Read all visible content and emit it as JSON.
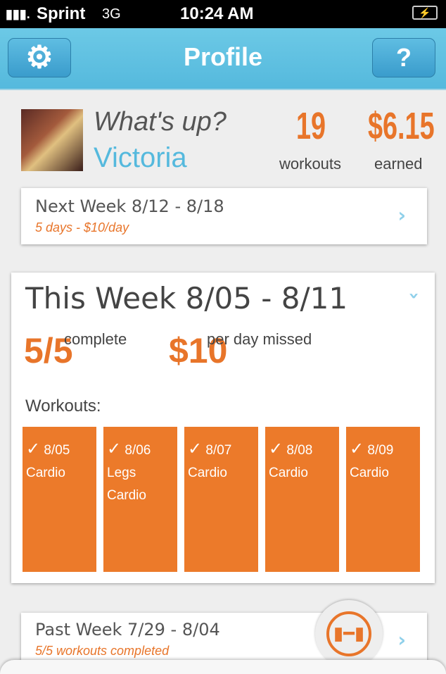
{
  "status": {
    "carrier": "Sprint",
    "network": "3G",
    "time": "10:24 AM"
  },
  "nav": {
    "title": "Profile",
    "help_label": "?"
  },
  "profile": {
    "greeting": "What's up?",
    "name": "Victoria",
    "workouts": "19",
    "workouts_label": "workouts",
    "earned": "$6.15",
    "earned_label": "earned"
  },
  "next_week": {
    "title": "Next Week 8/12 - 8/18",
    "subtitle": "5 days - $10/day"
  },
  "this_week": {
    "title": "This Week 8/05 - 8/11",
    "complete": "5/5",
    "complete_label": "complete",
    "penalty": "$10",
    "penalty_label": "per day missed",
    "workouts_heading": "Workouts:",
    "workouts": [
      {
        "date": "8/05",
        "lines": [
          "Cardio"
        ]
      },
      {
        "date": "8/06",
        "lines": [
          "Legs",
          "Cardio"
        ]
      },
      {
        "date": "8/07",
        "lines": [
          "Cardio"
        ]
      },
      {
        "date": "8/08",
        "lines": [
          "Cardio"
        ]
      },
      {
        "date": "8/09",
        "lines": [
          "Cardio"
        ]
      }
    ]
  },
  "past_week": {
    "title": "Past Week 7/29 - 8/04",
    "subtitle": "5/5 workouts completed"
  },
  "colors": {
    "accent": "#e8752a",
    "blue": "#55b9dd"
  }
}
